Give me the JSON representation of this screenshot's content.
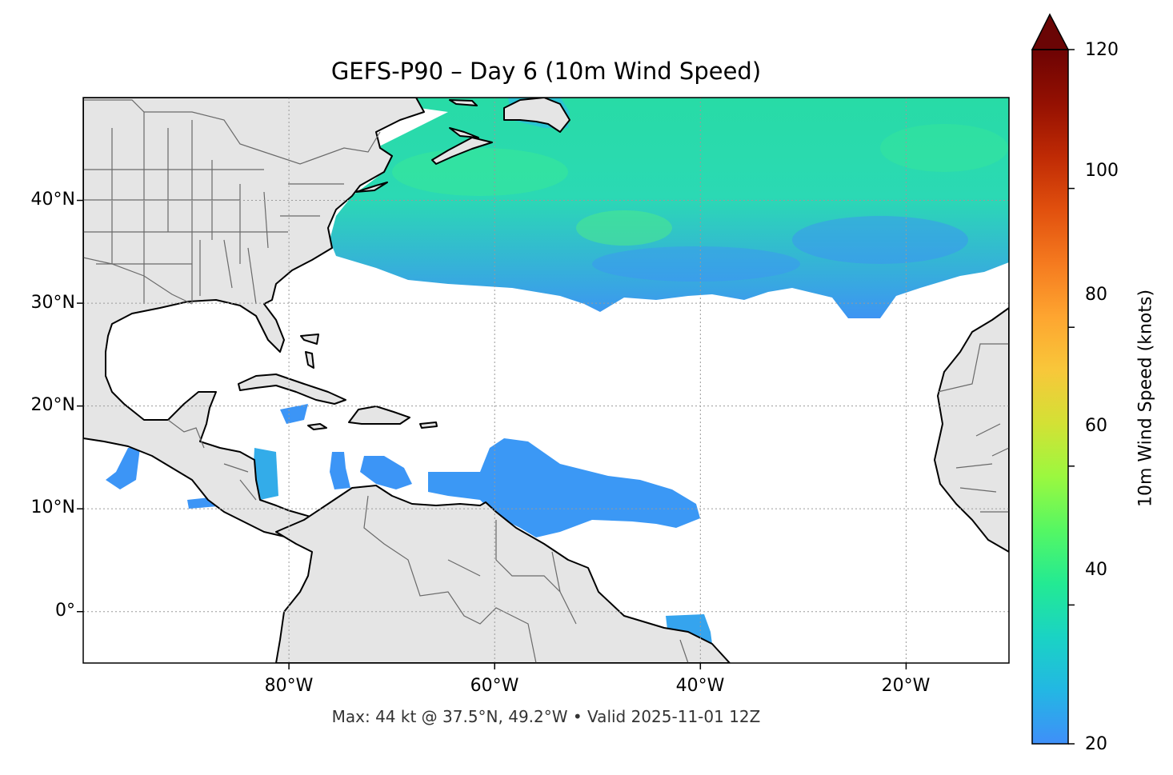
{
  "title": "GEFS-P90 – Day 6 (10m Wind Speed)",
  "footer": "Max: 44 kt @ 37.5°N, 49.2°W • Valid 2025-11-01 12Z",
  "map": {
    "lon_range": [
      -100,
      -10
    ],
    "lat_range": [
      -5,
      50
    ],
    "x_ticks": [
      {
        "lon": -80,
        "label": "80°W"
      },
      {
        "lon": -60,
        "label": "60°W"
      },
      {
        "lon": -40,
        "label": "40°W"
      },
      {
        "lon": -20,
        "label": "20°W"
      }
    ],
    "y_ticks": [
      {
        "lat": 40,
        "label": "40°N"
      },
      {
        "lat": 30,
        "label": "30°N"
      },
      {
        "lat": 20,
        "label": "20°N"
      },
      {
        "lat": 10,
        "label": "10°N"
      },
      {
        "lat": 0,
        "label": "0°"
      }
    ],
    "gridlines": true,
    "land_color": "#e5e5e5",
    "coast_color": "#000000",
    "border_color": "#6a6a6a"
  },
  "colorbar": {
    "label": "10m Wind Speed (knots)",
    "min": 20,
    "max": 120,
    "extend": "max",
    "ticks": [
      {
        "value": 120,
        "label": "120"
      },
      {
        "value": 100,
        "label": "100"
      },
      {
        "value": 80,
        "label": "80"
      },
      {
        "value": 60,
        "label": "60"
      },
      {
        "value": 40,
        "label": "40"
      },
      {
        "value": 20,
        "label": "20"
      }
    ],
    "colors": [
      "#3f8ff9",
      "#23b7e3",
      "#1ad3c4",
      "#23ea93",
      "#55f763",
      "#9bf83f",
      "#d3e135",
      "#f8c73a",
      "#fea530",
      "#f57a1f",
      "#e1500e",
      "#bf2a04",
      "#941002",
      "#6d0303"
    ],
    "extend_color": "#6a0505"
  },
  "chart_data": {
    "type": "heatmap",
    "variable": "10m Wind Speed",
    "units": "knots",
    "max": {
      "value": 44,
      "lat": 37.5,
      "lon": -49.2
    },
    "valid": "2025-11-01 12Z",
    "regions": [
      {
        "region": "North Atlantic band",
        "lat_range": [
          29,
          50
        ],
        "lon_range": [
          -70,
          -10
        ],
        "values_kt": [
          24,
          44
        ]
      },
      {
        "region": "Caribbean / tropical Atlantic plume",
        "lat_range": [
          7,
          17
        ],
        "lon_range": [
          -76,
          -41
        ],
        "values_kt": [
          22,
          28
        ]
      },
      {
        "region": "Western Caribbean patches",
        "lat_range": [
          9,
          16
        ],
        "lon_range": [
          -96,
          -83
        ],
        "values_kt": [
          22,
          27
        ]
      },
      {
        "region": "Equatorial patch",
        "lat_range": [
          -3,
          0
        ],
        "lon_range": [
          -42,
          -38
        ],
        "values_kt": [
          23,
          27
        ]
      }
    ]
  }
}
